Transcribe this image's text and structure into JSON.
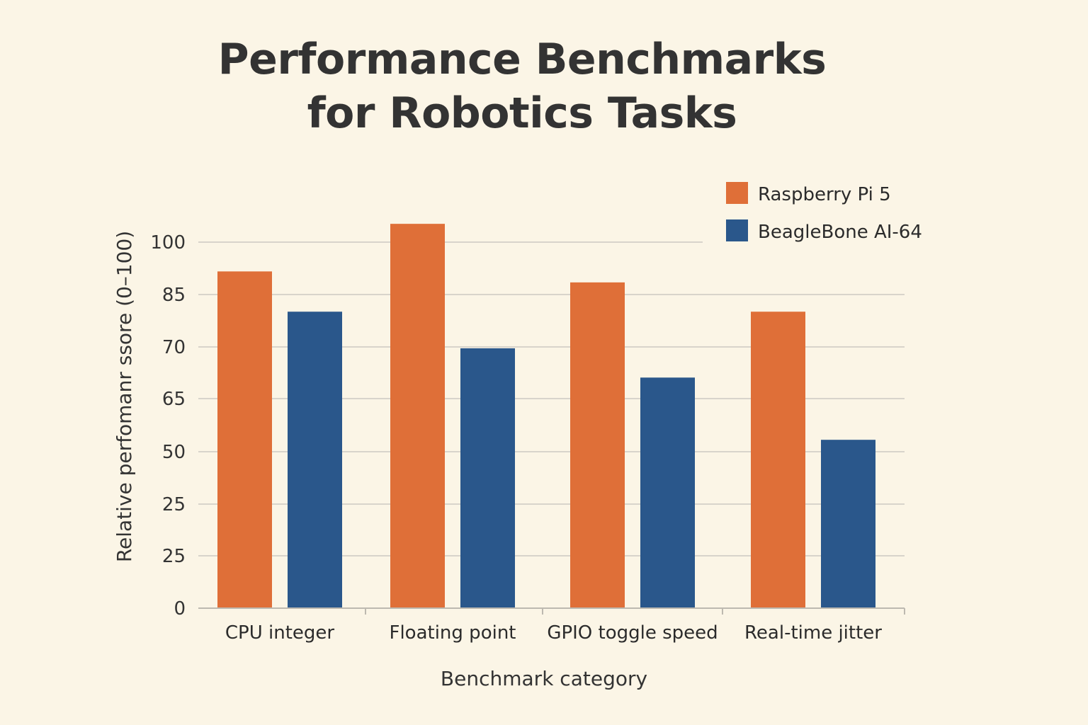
{
  "chart_data": {
    "type": "bar",
    "title_lines": [
      "Performance Benchmarks",
      "for Robotics Tasks"
    ],
    "xlabel": "Benchmark category",
    "ylabel": "Relative perfomanr ssore (0–100)",
    "categories": [
      "CPU integer",
      "Floating point",
      "GPIO toggle speed",
      "Real-time jitter"
    ],
    "y_tick_labels": [
      "0",
      "25",
      "25",
      "50",
      "65",
      "70",
      "85",
      "100"
    ],
    "series": [
      {
        "name": "Raspberry Pi 5",
        "color": "#df6f38",
        "values": [
          92,
          105,
          89,
          81
        ]
      },
      {
        "name": "BeagleBone AI-64",
        "color": "#2a578b",
        "values": [
          81,
          71,
          63,
          46
        ]
      }
    ],
    "ylim": [
      0,
      110
    ],
    "grid": true,
    "legend_position": "top-right"
  }
}
